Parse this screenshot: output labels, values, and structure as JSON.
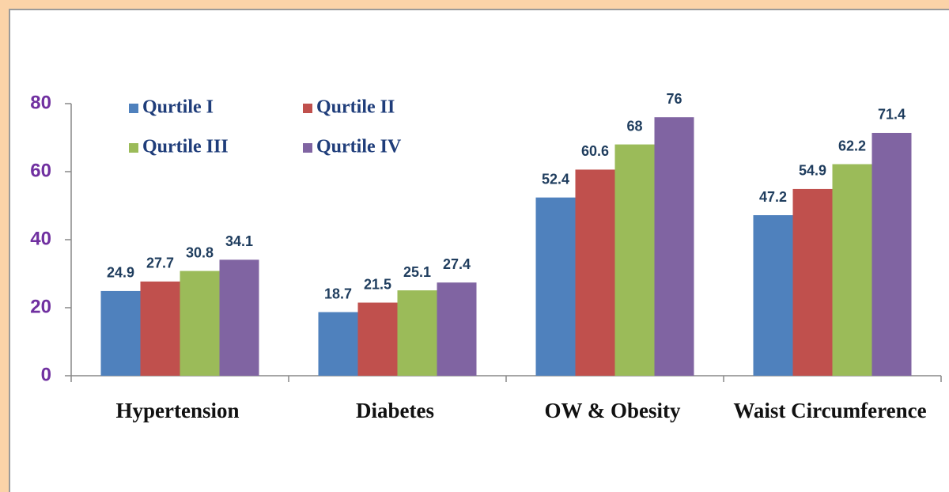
{
  "chart_data": {
    "type": "bar",
    "categories": [
      "Hypertension",
      "Diabetes",
      "OW & Obesity",
      "Waist Circumference"
    ],
    "series": [
      {
        "name": "Qurtile I",
        "color": "#4f81bd",
        "values": [
          24.9,
          18.7,
          52.4,
          47.2
        ]
      },
      {
        "name": "Qurtile II",
        "color": "#c0504d",
        "values": [
          27.7,
          21.5,
          60.6,
          54.9
        ]
      },
      {
        "name": "Qurtile III",
        "color": "#9bbb59",
        "values": [
          30.8,
          25.1,
          68,
          62.2
        ]
      },
      {
        "name": "Qurtile IV",
        "color": "#8064a2",
        "values": [
          34.1,
          27.4,
          76,
          71.4
        ]
      }
    ],
    "ylim": [
      0,
      80
    ],
    "yticks": [
      0,
      20,
      40,
      60,
      80
    ],
    "grid": false
  }
}
